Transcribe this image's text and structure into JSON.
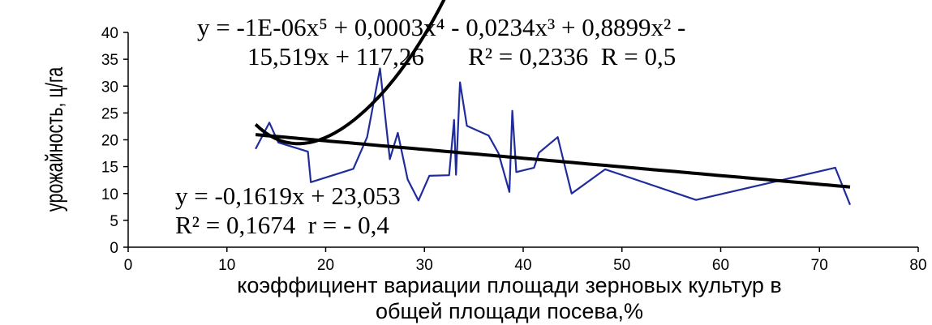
{
  "chart_data": {
    "type": "line",
    "xlabel_line1": "коэффициент вариации площади зерновых культур в",
    "xlabel_line2": "общей площади посева,%",
    "ylabel": "урожайность, ц/га",
    "xlim": [
      0,
      80
    ],
    "ylim": [
      0,
      40
    ],
    "x_ticks": [
      "0",
      "10",
      "20",
      "30",
      "40",
      "50",
      "60",
      "70",
      "80"
    ],
    "y_ticks": [
      "0",
      "5",
      "10",
      "15",
      "20",
      "25",
      "30",
      "35",
      "40"
    ],
    "grid": false,
    "series_color": "#1f2c9a",
    "trend_color": "#000000",
    "series": [
      {
        "x": [
          12.9,
          14.3,
          15.2,
          18.2,
          18.5,
          22.8,
          24.2,
          25.5,
          26.5,
          27.3,
          28.3,
          29.4,
          30.5,
          32.5,
          33.0,
          33.2,
          33.6,
          34.3,
          36.5,
          37.5,
          38.6,
          38.9,
          39.3,
          41.1,
          41.6,
          43.5,
          44.9,
          48.3,
          57.5,
          71.6,
          73.1
        ],
        "y": [
          18.3,
          23.2,
          19.5,
          17.8,
          12.1,
          14.6,
          20.5,
          33.3,
          16.4,
          21.3,
          12.6,
          8.7,
          13.3,
          13.4,
          23.7,
          13.5,
          30.7,
          22.6,
          20.8,
          17.5,
          10.3,
          25.4,
          14.0,
          14.8,
          17.6,
          20.5,
          10.0,
          14.5,
          8.8,
          14.8,
          7.9
        ]
      }
    ],
    "trendlines": [
      {
        "type": "poly5",
        "coefficients": [
          117.26,
          -15.519,
          0.8899,
          -0.0234,
          0.0003,
          -1e-06
        ],
        "x_range": [
          12.9,
          73.1
        ]
      },
      {
        "type": "linear",
        "slope": -0.1619,
        "intercept": 23.053,
        "x_range": [
          12.9,
          73.1
        ]
      }
    ],
    "annotations": {
      "poly_eq_line1": "y = -1E-06x⁵ + 0,0003x⁴ - 0,0234x³ + 0,8899x² -",
      "poly_eq_line2": "15,519x + 117,26       R² = 0,2336  R = 0,5",
      "lin_eq_line1": "y = -0,1619x + 23,053",
      "lin_eq_line2": "R² = 0,1674  r = - 0,4"
    }
  }
}
